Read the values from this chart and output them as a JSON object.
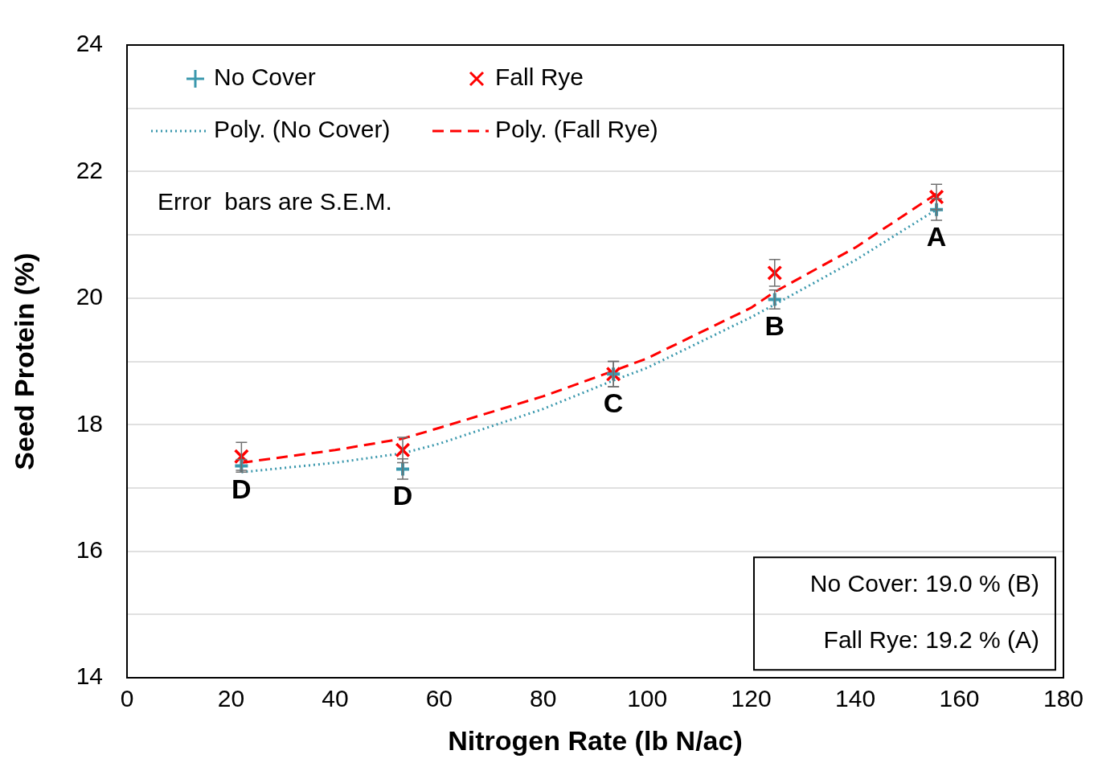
{
  "chart_data": {
    "type": "scatter",
    "xlabel": "Nitrogen Rate (lb N/ac)",
    "ylabel": "Seed Protein (%)",
    "xlim": [
      0,
      180
    ],
    "xticks": [
      0,
      20,
      40,
      60,
      80,
      100,
      120,
      140,
      160,
      180
    ],
    "ylim": [
      14,
      24
    ],
    "yticks": [
      14,
      {
        "value": 15,
        "label": null
      },
      16,
      {
        "value": 17,
        "label": null
      },
      18,
      {
        "value": 19,
        "label": null
      },
      20,
      {
        "value": 21,
        "label": null
      },
      22,
      {
        "value": 23,
        "label": null
      },
      24
    ],
    "grid": "y",
    "legend": "top left",
    "series": [
      {
        "name": "No Cover",
        "type": "scatter",
        "marker": "cross",
        "color": "#3b98ad",
        "x": [
          22,
          53,
          93.5,
          124.5,
          155.6
        ],
        "values": [
          17.35,
          17.3,
          18.8,
          19.98,
          21.4
        ],
        "errors": [
          0.1,
          0.16,
          0.2,
          0.15,
          0.17
        ]
      },
      {
        "name": "Fall Rye",
        "type": "scatter",
        "color": "#ff0000",
        "x": [
          22,
          53,
          93.5,
          124.5,
          155.6
        ],
        "values": [
          17.5,
          17.6,
          18.8,
          20.4,
          21.6
        ],
        "errors": [
          0.22,
          0.2,
          0.2,
          0.21,
          0.2
        ]
      },
      {
        "name": "Poly. (No Cover)",
        "type": "line",
        "marker": "none",
        "line_style": "dotted",
        "color": "#3b98ad",
        "x": [
          22,
          40,
          53,
          60,
          80,
          93.5,
          100,
          120,
          124.5,
          140,
          155.6
        ],
        "values": [
          17.25,
          17.4,
          17.55,
          17.7,
          18.25,
          18.7,
          18.9,
          19.7,
          19.9,
          20.6,
          21.4
        ]
      },
      {
        "name": "Poly. (Fall Rye)",
        "type": "line",
        "marker": "none",
        "line_style": "dashed",
        "color": "#ff0000",
        "x": [
          22,
          40,
          53,
          60,
          80,
          93.5,
          100,
          120,
          124.5,
          140,
          155.6
        ],
        "values": [
          17.4,
          17.6,
          17.78,
          17.95,
          18.45,
          18.85,
          19.05,
          19.85,
          20.1,
          20.8,
          21.65
        ]
      }
    ],
    "annotations": [
      "Error  bars are S.E.M.",
      "No Cover: 19.0 % (B)",
      "Fall Rye: 19.2 % (A)",
      "D",
      "D",
      "C",
      "B",
      "A"
    ]
  }
}
